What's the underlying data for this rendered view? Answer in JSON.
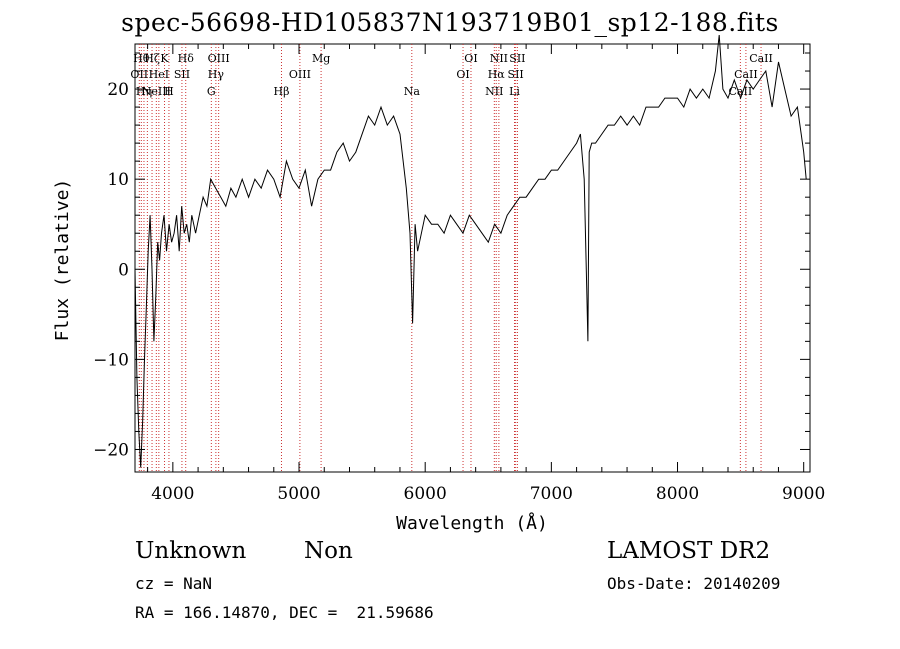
{
  "chart_data": {
    "type": "line",
    "title": "spec-56698-HD105837N193719B01_sp12-188.fits",
    "xlabel": "Wavelength (Å)",
    "ylabel": "Flux (relative)",
    "xlim": [
      3700,
      9050
    ],
    "ylim": [
      -22.5,
      25
    ],
    "xticks": [
      4000,
      5000,
      6000,
      7000,
      8000,
      9000
    ],
    "yticks": [
      -20,
      -10,
      0,
      10,
      20
    ],
    "grid": false,
    "line_color": "#000000",
    "marker_line_color": "#cc3333",
    "series": [
      {
        "x": [
          3700,
          3715,
          3730,
          3745,
          3760,
          3775,
          3790,
          3805,
          3820,
          3835,
          3850,
          3865,
          3880,
          3895,
          3910,
          3930,
          3950,
          3970,
          3990,
          4010,
          4030,
          4050,
          4070,
          4090,
          4110,
          4130,
          4150,
          4180,
          4210,
          4240,
          4270,
          4300,
          4340,
          4380,
          4420,
          4460,
          4500,
          4550,
          4600,
          4650,
          4700,
          4750,
          4800,
          4850,
          4900,
          4950,
          5000,
          5050,
          5100,
          5150,
          5200,
          5250,
          5300,
          5350,
          5400,
          5450,
          5500,
          5550,
          5600,
          5650,
          5700,
          5750,
          5800,
          5850,
          5880,
          5900,
          5920,
          5940,
          5970,
          6000,
          6050,
          6100,
          6150,
          6200,
          6250,
          6300,
          6350,
          6400,
          6450,
          6500,
          6550,
          6600,
          6650,
          6700,
          6750,
          6800,
          6850,
          6900,
          6950,
          7000,
          7050,
          7100,
          7150,
          7200,
          7230,
          7260,
          7280,
          7290,
          7300,
          7320,
          7350,
          7400,
          7450,
          7500,
          7550,
          7600,
          7650,
          7700,
          7750,
          7800,
          7850,
          7900,
          7950,
          8000,
          8050,
          8100,
          8150,
          8200,
          8250,
          8300,
          8330,
          8360,
          8400,
          8450,
          8500,
          8550,
          8600,
          8650,
          8700,
          8750,
          8800,
          8850,
          8900,
          8950,
          8980,
          9000,
          9020
        ],
        "y": [
          0,
          -12,
          -18,
          -22,
          -17,
          -10,
          -4,
          2,
          6,
          0,
          -8,
          -3,
          3,
          1,
          4,
          6,
          2,
          5,
          3,
          4,
          6,
          2,
          7,
          4,
          5,
          3,
          6,
          4,
          6,
          8,
          7,
          10,
          9,
          8,
          7,
          9,
          8,
          10,
          8,
          10,
          9,
          11,
          10,
          8,
          12,
          10,
          9,
          11,
          7,
          10,
          11,
          11,
          13,
          14,
          12,
          13,
          15,
          17,
          16,
          18,
          16,
          17,
          15,
          9,
          4,
          -6,
          5,
          2,
          4,
          6,
          5,
          5,
          4,
          6,
          5,
          4,
          6,
          5,
          4,
          3,
          5,
          4,
          6,
          7,
          8,
          8,
          9,
          10,
          10,
          11,
          11,
          12,
          13,
          14,
          15,
          10,
          -2,
          -8,
          13,
          14,
          14,
          15,
          16,
          16,
          17,
          16,
          17,
          16,
          18,
          18,
          18,
          19,
          19,
          19,
          18,
          20,
          19,
          20,
          19,
          22,
          26,
          20,
          19,
          21,
          19,
          21,
          20,
          21,
          22,
          18,
          23,
          20,
          17,
          18,
          15,
          13,
          10
        ]
      }
    ],
    "line_markers": [
      {
        "wl": 3734,
        "label": "OII",
        "row": 2
      },
      {
        "wl": 3750,
        "label": "Hθ",
        "row": 1
      },
      {
        "wl": 3771,
        "label": "Hη",
        "row": 3
      },
      {
        "wl": 3798,
        "label": "",
        "row": 0
      },
      {
        "wl": 3835,
        "label": "Hζ",
        "row": 1
      },
      {
        "wl": 3869,
        "label": "NeIII",
        "row": 3
      },
      {
        "wl": 3889,
        "label": "HeI",
        "row": 2
      },
      {
        "wl": 3934,
        "label": "K",
        "row": 1
      },
      {
        "wl": 3969,
        "label": "H",
        "row": 3
      },
      {
        "wl": 4072,
        "label": "SII",
        "row": 2
      },
      {
        "wl": 4102,
        "label": "Hδ",
        "row": 1
      },
      {
        "wl": 4305,
        "label": "G",
        "row": 3
      },
      {
        "wl": 4341,
        "label": "Hγ",
        "row": 2
      },
      {
        "wl": 4363,
        "label": "OIII",
        "row": 1
      },
      {
        "wl": 4861,
        "label": "Hβ",
        "row": 3
      },
      {
        "wl": 5007,
        "label": "OIII",
        "row": 2
      },
      {
        "wl": 5175,
        "label": "Mg",
        "row": 1
      },
      {
        "wl": 5894,
        "label": "Na",
        "row": 3
      },
      {
        "wl": 6300,
        "label": "OI",
        "row": 2
      },
      {
        "wl": 6363,
        "label": "OI",
        "row": 1
      },
      {
        "wl": 6548,
        "label": "NII",
        "row": 3
      },
      {
        "wl": 6563,
        "label": "Hα",
        "row": 2
      },
      {
        "wl": 6584,
        "label": "NII",
        "row": 1
      },
      {
        "wl": 6708,
        "label": "Li",
        "row": 3
      },
      {
        "wl": 6717,
        "label": "SII",
        "row": 2
      },
      {
        "wl": 6731,
        "label": "SII",
        "row": 1
      },
      {
        "wl": 8498,
        "label": "CaII",
        "row": 3
      },
      {
        "wl": 8542,
        "label": "CaII",
        "row": 2
      },
      {
        "wl": 8662,
        "label": "CaII",
        "row": 1
      }
    ]
  },
  "info": {
    "object_class": "Unknown",
    "subclass": "Non",
    "cz": "cz = NaN",
    "coords": "RA = 166.14870, DEC =  21.59686",
    "survey": "LAMOST DR2",
    "obs_date": "Obs-Date: 20140209"
  }
}
